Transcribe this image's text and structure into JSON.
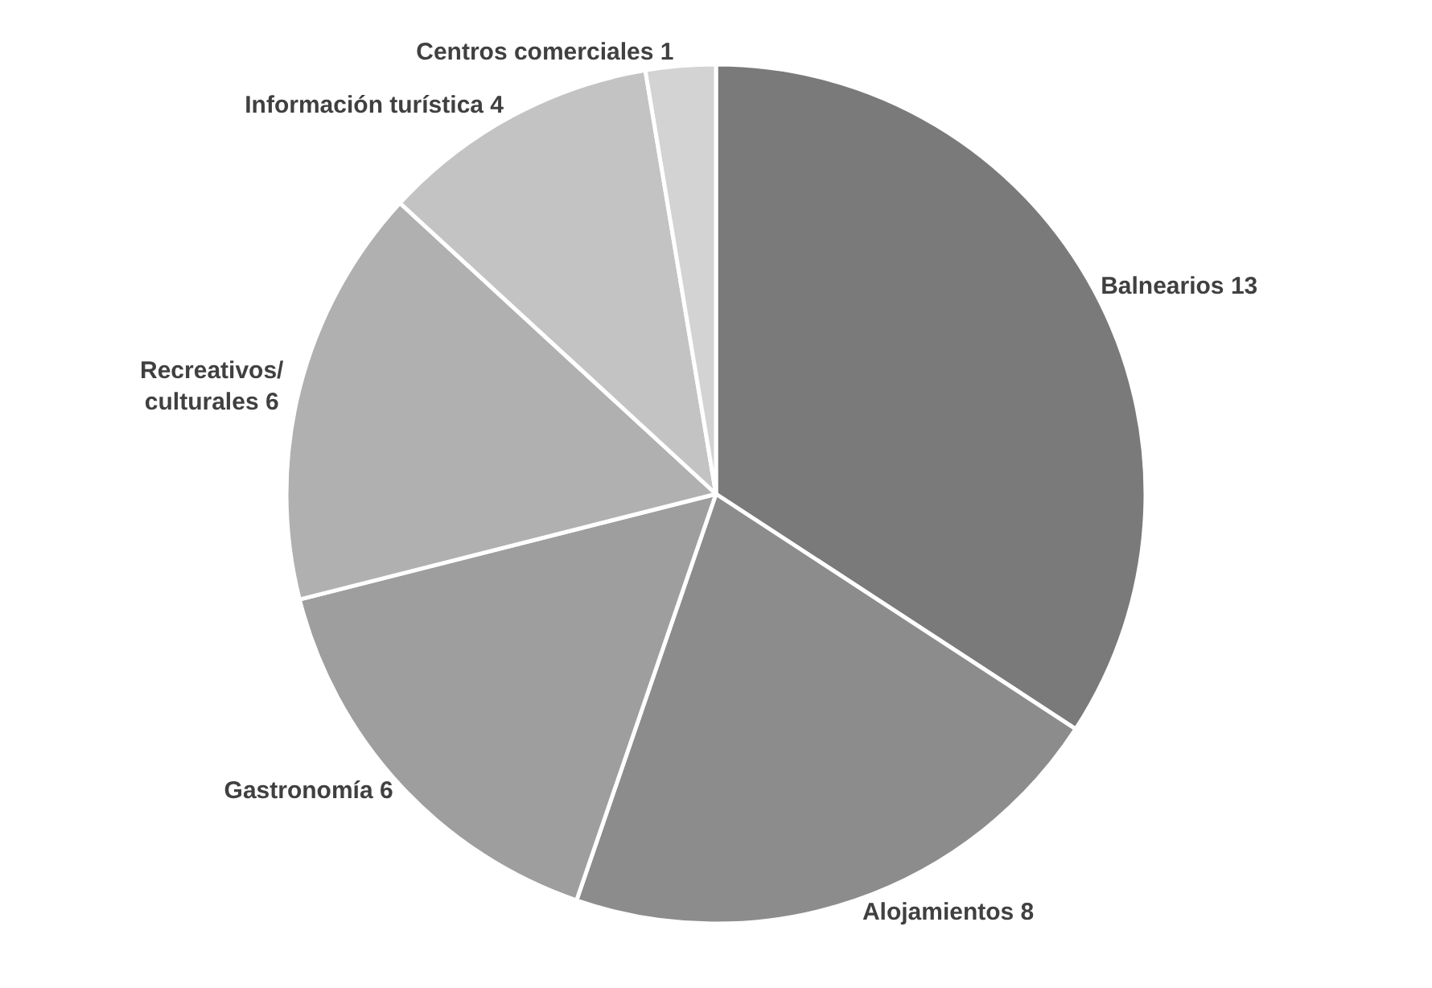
{
  "chart_data": {
    "type": "pie",
    "categories": [
      "Balnearios",
      "Alojamientos",
      "Gastronomía",
      "Recreativos/culturales",
      "Información turística",
      "Centros comerciales"
    ],
    "values": [
      13,
      8,
      6,
      6,
      4,
      1
    ],
    "colors": [
      "#7a7a7a",
      "#8c8c8c",
      "#9e9e9e",
      "#b0b0b0",
      "#c3c3c3",
      "#d3d3d3"
    ],
    "data_labels": true,
    "legend": false
  }
}
